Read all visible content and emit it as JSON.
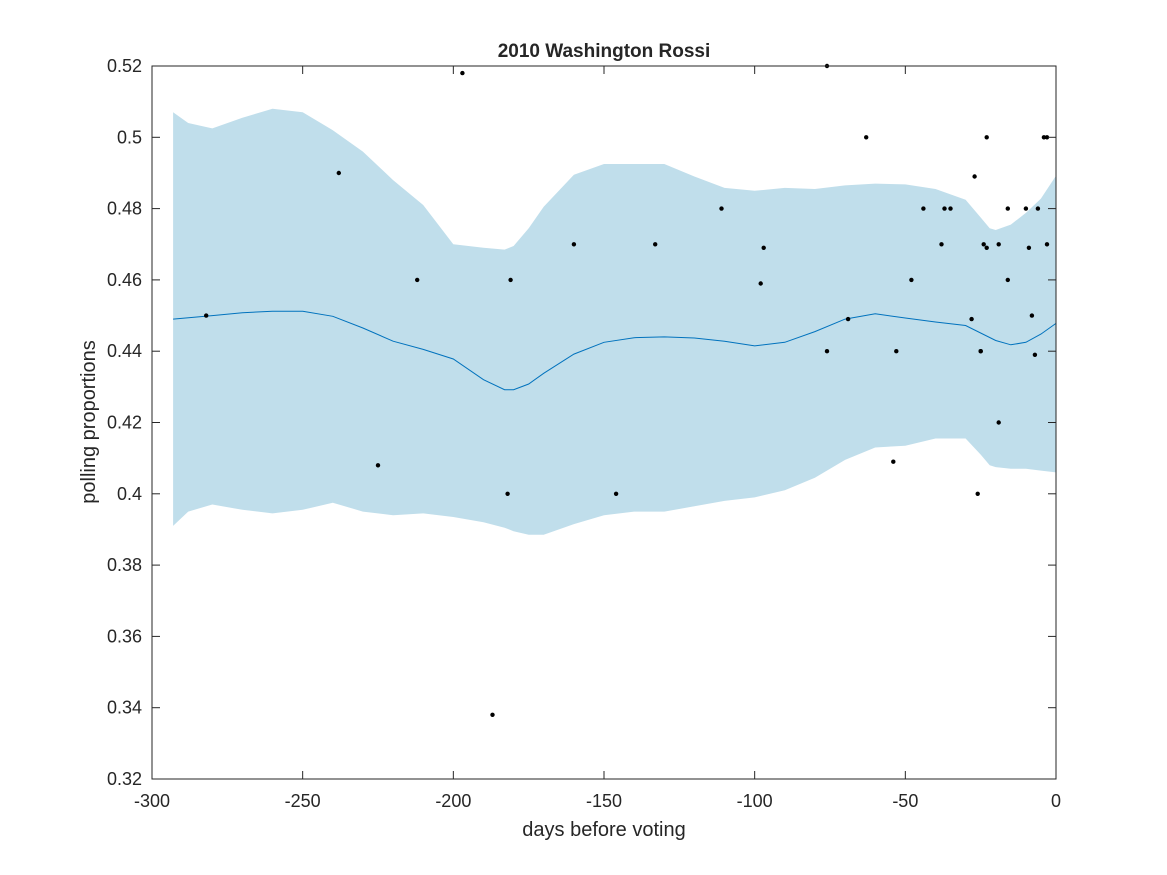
{
  "chart_data": {
    "type": "scatter",
    "title": "2010 Washington Rossi",
    "xlabel": "days before voting",
    "ylabel": "polling proportions",
    "xlim": [
      -300,
      0
    ],
    "ylim": [
      0.32,
      0.52
    ],
    "xticks": [
      -300,
      -250,
      -200,
      -150,
      -100,
      -50,
      0
    ],
    "xtick_labels": [
      "-300",
      "-250",
      "-200",
      "-150",
      "-100",
      "-50",
      "0"
    ],
    "yticks": [
      0.32,
      0.34,
      0.36,
      0.38,
      0.4,
      0.42,
      0.44,
      0.46,
      0.48,
      0.5,
      0.52
    ],
    "ytick_labels": [
      "0.32",
      "0.34",
      "0.36",
      "0.38",
      "0.4",
      "0.42",
      "0.44",
      "0.46",
      "0.48",
      "0.5",
      "0.52"
    ],
    "grid": false,
    "colors": {
      "band": "#c0deeb",
      "line": "#0072bd",
      "points": "#000000",
      "axes": "#262626"
    },
    "points": [
      [
        -282,
        0.45
      ],
      [
        -238,
        0.49
      ],
      [
        -225,
        0.408
      ],
      [
        -212,
        0.46
      ],
      [
        -197,
        0.518
      ],
      [
        -187,
        0.338
      ],
      [
        -182,
        0.4
      ],
      [
        -181,
        0.46
      ],
      [
        -160,
        0.47
      ],
      [
        -146,
        0.4
      ],
      [
        -133,
        0.47
      ],
      [
        -111,
        0.48
      ],
      [
        -98,
        0.459
      ],
      [
        -97,
        0.469
      ],
      [
        -76,
        0.44
      ],
      [
        -76,
        0.52
      ],
      [
        -69,
        0.449
      ],
      [
        -63,
        0.5
      ],
      [
        -54,
        0.409
      ],
      [
        -53,
        0.44
      ],
      [
        -48,
        0.46
      ],
      [
        -44,
        0.48
      ],
      [
        -38,
        0.47
      ],
      [
        -37,
        0.48
      ],
      [
        -35,
        0.48
      ],
      [
        -28,
        0.449
      ],
      [
        -27,
        0.489
      ],
      [
        -26,
        0.4
      ],
      [
        -25,
        0.44
      ],
      [
        -25,
        0.44
      ],
      [
        -24,
        0.47
      ],
      [
        -23,
        0.469
      ],
      [
        -23,
        0.5
      ],
      [
        -19,
        0.47
      ],
      [
        -19,
        0.42
      ],
      [
        -16,
        0.46
      ],
      [
        -16,
        0.48
      ],
      [
        -10,
        0.48
      ],
      [
        -9,
        0.469
      ],
      [
        -8,
        0.45
      ],
      [
        -7,
        0.439
      ],
      [
        -6,
        0.48
      ],
      [
        -4,
        0.5
      ],
      [
        -3,
        0.5
      ],
      [
        -3,
        0.47
      ]
    ],
    "mean_curve": {
      "x": [
        -293,
        -280,
        -270,
        -260,
        -250,
        -240,
        -230,
        -220,
        -210,
        -200,
        -190,
        -183,
        -180,
        -175,
        -170,
        -160,
        -150,
        -140,
        -130,
        -120,
        -110,
        -100,
        -90,
        -80,
        -70,
        -60,
        -50,
        -40,
        -30,
        -20,
        -15,
        -10,
        -5,
        0
      ],
      "y": [
        0.449,
        0.45,
        0.4508,
        0.4512,
        0.4512,
        0.4498,
        0.4465,
        0.4428,
        0.4405,
        0.4378,
        0.432,
        0.4292,
        0.4292,
        0.4308,
        0.4338,
        0.4392,
        0.4425,
        0.4438,
        0.444,
        0.4437,
        0.4428,
        0.4415,
        0.4425,
        0.4455,
        0.449,
        0.4505,
        0.4493,
        0.4482,
        0.4472,
        0.443,
        0.4418,
        0.4425,
        0.4448,
        0.4478
      ]
    },
    "confidence_band": {
      "x": [
        -293,
        -288,
        -280,
        -270,
        -260,
        -250,
        -240,
        -230,
        -220,
        -210,
        -200,
        -190,
        -183,
        -180,
        -175,
        -170,
        -160,
        -150,
        -140,
        -130,
        -120,
        -110,
        -100,
        -90,
        -80,
        -70,
        -60,
        -50,
        -40,
        -30,
        -25,
        -22,
        -20,
        -15,
        -10,
        -5,
        0
      ],
      "upper": [
        0.507,
        0.504,
        0.5025,
        0.5055,
        0.508,
        0.507,
        0.502,
        0.496,
        0.488,
        0.481,
        0.47,
        0.469,
        0.4685,
        0.4695,
        0.4745,
        0.4805,
        0.4895,
        0.4925,
        0.4925,
        0.4925,
        0.489,
        0.4858,
        0.485,
        0.4858,
        0.4855,
        0.4865,
        0.487,
        0.4868,
        0.4855,
        0.4825,
        0.4775,
        0.4745,
        0.474,
        0.4755,
        0.4788,
        0.4828,
        0.4892
      ],
      "lower": [
        0.391,
        0.395,
        0.397,
        0.3955,
        0.3945,
        0.3955,
        0.3975,
        0.395,
        0.394,
        0.3945,
        0.3935,
        0.392,
        0.3905,
        0.3895,
        0.3885,
        0.3885,
        0.3915,
        0.394,
        0.395,
        0.395,
        0.3965,
        0.398,
        0.399,
        0.401,
        0.4045,
        0.4095,
        0.413,
        0.4135,
        0.4155,
        0.4155,
        0.411,
        0.408,
        0.4075,
        0.407,
        0.407,
        0.4065,
        0.406
      ]
    }
  }
}
